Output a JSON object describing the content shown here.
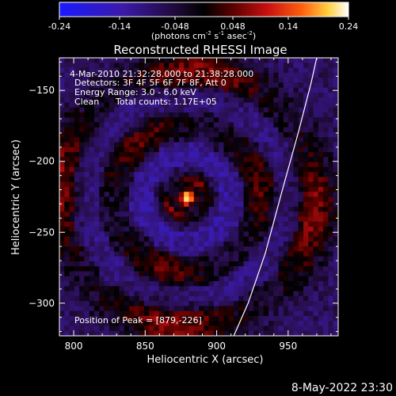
{
  "chart_data": {
    "type": "heatmap",
    "title": "Reconstructed RHESSI Image",
    "xlabel": "Heliocentric X (arcsec)",
    "ylabel": "Heliocentric Y (arcsec)",
    "xlim": [
      790,
      985
    ],
    "ylim": [
      -323,
      -127
    ],
    "x_ticks": [
      800,
      850,
      900,
      950
    ],
    "y_ticks": [
      -150,
      -200,
      -250,
      -300
    ],
    "colorbar": {
      "label_main": "(photons cm",
      "label_exp1": "-2",
      "label_mid": " s",
      "label_exp2": "-1",
      "label_post": " asec",
      "label_exp3": "-2",
      "label_end": ")",
      "range": [
        -0.24,
        0.24
      ],
      "ticks": [
        "-0.24",
        "-0.14",
        "-0.048",
        "0.048",
        "0.14",
        "0.24"
      ],
      "colormap": "rainbow_blue_black_red_yellow_white"
    },
    "annotations": {
      "time_range": "4-Mar-2010 21:32:28.000 to 21:38:28.000",
      "detectors": "Detectors: 3F 4F 5F 6F 7F 8F, Att 0",
      "energy": "Energy Range: 3.0 - 6.0 keV",
      "clean_label": "Clean",
      "counts": "Total counts: 1.17E+05",
      "peak": "Position of Peak = [879,-226]"
    },
    "peak": {
      "x": 879,
      "y": -226
    },
    "limb_curve": [
      {
        "x": 912,
        "y": -323
      },
      {
        "x": 922,
        "y": -300
      },
      {
        "x": 934,
        "y": -265
      },
      {
        "x": 946,
        "y": -220
      },
      {
        "x": 957,
        "y": -180
      },
      {
        "x": 966,
        "y": -145
      },
      {
        "x": 970,
        "y": -127
      }
    ],
    "rings": [
      {
        "radius": 14,
        "amplitude": 0.12
      },
      {
        "radius": 52,
        "amplitude": 0.1
      },
      {
        "radius": 90,
        "amplitude": 0.12
      }
    ],
    "grid": false,
    "legend": "none"
  },
  "footer": {
    "date": "8-May-2022 23:30"
  }
}
